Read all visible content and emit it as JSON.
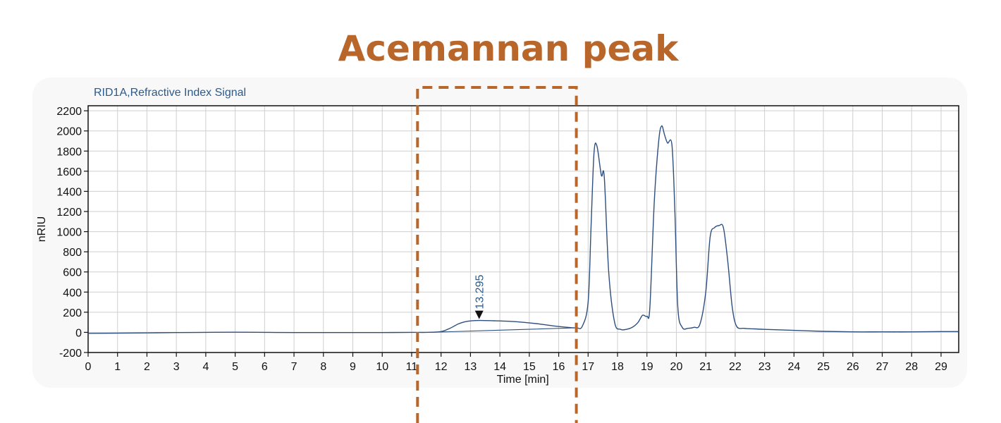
{
  "headline": "Acemannan peak",
  "signal_label": "RID1A,Refractive Index Signal",
  "colors": {
    "headline": "#b8662a",
    "signal_label": "#2a5a8c",
    "trace": "#2e4f7e",
    "highlight_box": "#b8662a",
    "grid": "#cfcfcf"
  },
  "chart_data": {
    "type": "line",
    "title": "",
    "xlabel": "Time [min]",
    "ylabel": "nRIU",
    "xlim": [
      0,
      29.6
    ],
    "ylim": [
      -200,
      2250
    ],
    "x_ticks": [
      0,
      1,
      2,
      3,
      4,
      5,
      6,
      7,
      8,
      9,
      10,
      11,
      12,
      13,
      14,
      15,
      16,
      17,
      18,
      19,
      20,
      21,
      22,
      23,
      24,
      25,
      26,
      27,
      28,
      29
    ],
    "y_ticks": [
      -200,
      0,
      200,
      400,
      600,
      800,
      1000,
      1200,
      1400,
      1600,
      1800,
      2000,
      2200
    ],
    "grid": true,
    "series": [
      {
        "x": [
          0,
          1,
          2,
          3,
          4,
          5,
          6,
          7,
          8,
          9,
          10,
          11,
          11.5,
          12,
          12.3,
          12.6,
          12.9,
          13.3,
          13.8,
          14.3,
          14.8,
          15.3,
          15.8,
          16.3,
          16.6,
          16.8,
          17.0,
          17.1,
          17.2,
          17.3,
          17.45,
          17.55,
          17.7,
          17.9,
          18.1,
          18.3,
          18.5,
          18.7,
          18.85,
          19.0,
          19.1,
          19.25,
          19.4,
          19.5,
          19.6,
          19.7,
          19.85,
          19.95,
          20.05,
          20.2,
          20.4,
          20.6,
          20.8,
          21.0,
          21.15,
          21.3,
          21.45,
          21.6,
          21.75,
          21.9,
          22.05,
          22.3,
          22.6,
          23,
          24,
          25,
          26,
          27,
          28,
          29,
          29.6
        ],
        "y": [
          -10,
          -8,
          -5,
          -2,
          0,
          2,
          0,
          -2,
          -2,
          -2,
          -2,
          0,
          0,
          8,
          40,
          85,
          110,
          118,
          115,
          110,
          100,
          85,
          65,
          50,
          45,
          60,
          300,
          1050,
          1780,
          1850,
          1560,
          1540,
          600,
          100,
          30,
          30,
          50,
          100,
          170,
          160,
          250,
          1300,
          1900,
          2050,
          1960,
          1880,
          1860,
          1200,
          250,
          50,
          40,
          50,
          80,
          400,
          950,
          1040,
          1060,
          1040,
          700,
          250,
          60,
          40,
          35,
          30,
          20,
          10,
          5,
          5,
          5,
          8,
          8
        ]
      },
      {
        "name": "baseline",
        "x": [
          11.6,
          16.6
        ],
        "y": [
          0,
          45
        ]
      }
    ],
    "annotations": [
      {
        "label": "13.295",
        "x": 13.295,
        "y": 118,
        "type": "peak-marker"
      }
    ],
    "highlight_region": {
      "x": [
        11.2,
        16.6
      ],
      "label": ""
    }
  }
}
